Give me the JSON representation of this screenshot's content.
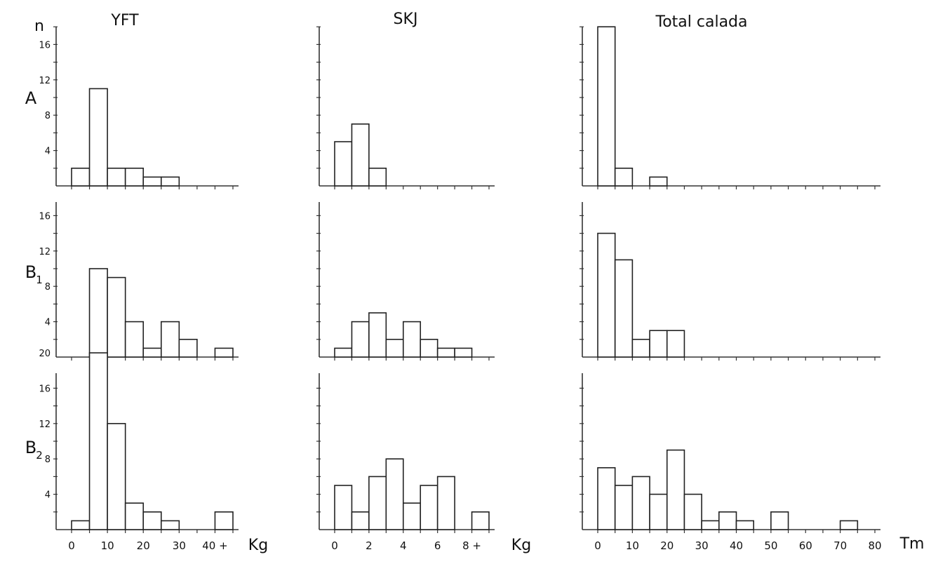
{
  "figure": {
    "y_axis_label": "n",
    "columns": [
      "YFT",
      "SKJ",
      "Total calada"
    ],
    "rows": [
      "A",
      "B",
      "B"
    ],
    "row_subscripts": [
      "",
      "1",
      "2"
    ],
    "units": [
      "Kg",
      "Kg",
      "Tm"
    ]
  },
  "chart_data": [
    {
      "type": "bar",
      "panel": "YFT-A",
      "x": [
        2.5,
        7.5,
        12.5,
        17.5,
        22.5,
        27.5
      ],
      "bin_width": 5,
      "values": [
        2,
        11,
        2,
        2,
        1,
        1
      ],
      "xlim": [
        0,
        45
      ],
      "ylim": [
        0,
        18
      ],
      "ytick_labels": [
        "4",
        "8",
        "12",
        "16"
      ],
      "xtick_labels": []
    },
    {
      "type": "bar",
      "panel": "SKJ-A",
      "x": [
        0.5,
        1.5,
        2.5
      ],
      "bin_width": 1,
      "values": [
        5,
        7,
        2
      ],
      "xlim": [
        0,
        9
      ],
      "ylim": [
        0,
        18
      ],
      "ytick_labels": [],
      "xtick_labels": []
    },
    {
      "type": "bar",
      "panel": "Total-A",
      "x": [
        2.5,
        7.5,
        17.5
      ],
      "bin_width": 5,
      "values": [
        18,
        2,
        1
      ],
      "xlim": [
        0,
        80
      ],
      "ylim": [
        0,
        18
      ],
      "ytick_labels": [],
      "xtick_labels": []
    },
    {
      "type": "bar",
      "panel": "YFT-B1",
      "x": [
        7.5,
        12.5,
        17.5,
        22.5,
        27.5,
        32.5,
        42.5
      ],
      "bin_width": 5,
      "values": [
        10,
        9,
        4,
        1,
        4,
        2,
        1
      ],
      "xlim": [
        0,
        45
      ],
      "ylim": [
        0,
        18
      ],
      "ytick_labels": [
        "4",
        "8",
        "12",
        "16"
      ],
      "xtick_labels": []
    },
    {
      "type": "bar",
      "panel": "SKJ-B1",
      "x": [
        0.5,
        1.5,
        2.5,
        3.5,
        4.5,
        5.5,
        6.5,
        7.5
      ],
      "bin_width": 1,
      "values": [
        1,
        4,
        5,
        2,
        4,
        2,
        1,
        1
      ],
      "xlim": [
        0,
        9
      ],
      "ylim": [
        0,
        18
      ],
      "ytick_labels": [],
      "xtick_labels": []
    },
    {
      "type": "bar",
      "panel": "Total-B1",
      "x": [
        2.5,
        7.5,
        12.5,
        17.5,
        22.5
      ],
      "bin_width": 5,
      "values": [
        14,
        11,
        2,
        3,
        3
      ],
      "xlim": [
        0,
        80
      ],
      "ylim": [
        0,
        18
      ],
      "ytick_labels": [],
      "xtick_labels": []
    },
    {
      "type": "bar",
      "panel": "YFT-B2",
      "x": [
        2.5,
        7.5,
        12.5,
        17.5,
        22.5,
        27.5,
        42.5
      ],
      "bin_width": 5,
      "values": [
        1,
        20,
        12,
        3,
        2,
        1,
        2
      ],
      "xlim": [
        0,
        45
      ],
      "ylim": [
        0,
        20
      ],
      "ytick_labels": [
        "4",
        "8",
        "12",
        "16",
        "20"
      ],
      "xtick_labels": [
        "0",
        "10",
        "20",
        "30",
        "40 +"
      ]
    },
    {
      "type": "bar",
      "panel": "SKJ-B2",
      "x": [
        0.5,
        1.5,
        2.5,
        3.5,
        4.5,
        5.5,
        6.5,
        8.5
      ],
      "bin_width": 1,
      "values": [
        5,
        2,
        6,
        8,
        3,
        5,
        6,
        2
      ],
      "xlim": [
        0,
        9
      ],
      "ylim": [
        0,
        20
      ],
      "ytick_labels": [],
      "xtick_labels": [
        "0",
        "2",
        "4",
        "6",
        "8 +"
      ]
    },
    {
      "type": "bar",
      "panel": "Total-B2",
      "x": [
        2.5,
        7.5,
        12.5,
        17.5,
        22.5,
        27.5,
        32.5,
        37.5,
        42.5,
        52.5,
        72.5
      ],
      "bin_width": 5,
      "values": [
        7,
        5,
        6,
        4,
        9,
        4,
        1,
        2,
        1,
        2,
        1
      ],
      "xlim": [
        0,
        80
      ],
      "ylim": [
        0,
        20
      ],
      "ytick_labels": [],
      "xtick_labels": [
        "0",
        "10",
        "20",
        "30",
        "40",
        "50",
        "60",
        "70",
        "80"
      ]
    }
  ]
}
